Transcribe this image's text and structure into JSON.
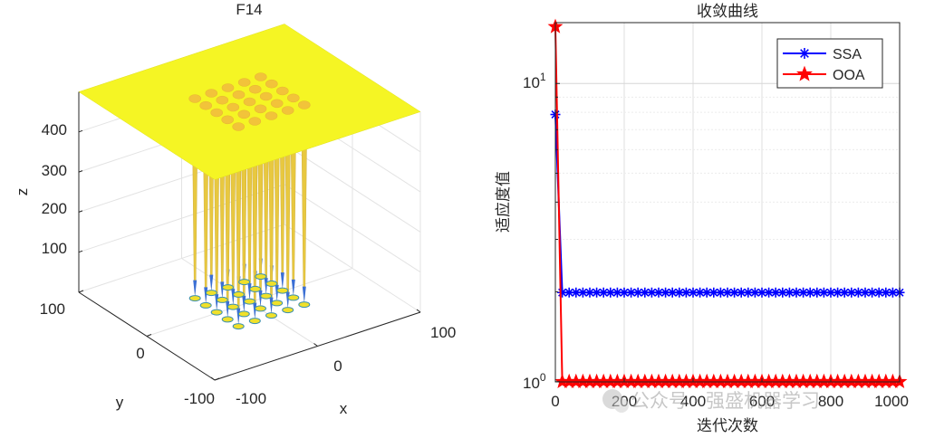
{
  "chart_data": [
    {
      "type": "surface",
      "title": "F14",
      "xlabel": "x",
      "ylabel": "y",
      "zlabel": "z",
      "xlim": [
        -100,
        100
      ],
      "ylim": [
        -100,
        100
      ],
      "zlim": [
        0,
        500
      ],
      "x_ticks": [
        "-100",
        "0",
        "100"
      ],
      "y_ticks": [
        "-100",
        "0",
        "100"
      ],
      "z_ticks": [
        "100",
        "200",
        "300",
        "400"
      ],
      "surface_value": 500,
      "well_grid_coords": [
        -32,
        -16,
        0,
        16,
        32
      ],
      "well_count": 25,
      "colors": {
        "plateau": "#f5f524",
        "walls": "#e8c840",
        "well_bottom": "#3b6fd4"
      }
    },
    {
      "type": "line",
      "title": "收敛曲线",
      "xlabel": "迭代次数",
      "ylabel": "适应度值",
      "yscale": "log",
      "xlim": [
        0,
        1000
      ],
      "ylim": [
        0.998,
        16
      ],
      "x_ticks": [
        "0",
        "200",
        "400",
        "600",
        "800",
        "1000"
      ],
      "y_tick_labels": [
        {
          "base": "10",
          "exp": "0"
        },
        {
          "base": "10",
          "exp": "1"
        }
      ],
      "legend_position": "top-right",
      "series": [
        {
          "name": "SSA",
          "color": "#0000ff",
          "marker": "asterisk",
          "x": [
            0,
            20,
            40,
            60,
            80,
            100,
            120,
            140,
            160,
            180,
            200,
            220,
            240,
            260,
            280,
            300,
            320,
            340,
            360,
            380,
            400,
            420,
            440,
            460,
            480,
            500,
            520,
            540,
            560,
            580,
            600,
            620,
            640,
            660,
            680,
            700,
            720,
            740,
            760,
            780,
            800,
            820,
            840,
            860,
            880,
            900,
            920,
            940,
            960,
            980,
            1000
          ],
          "y": [
            7.87,
            1.99,
            1.99,
            1.99,
            1.99,
            1.99,
            1.99,
            1.99,
            1.99,
            1.99,
            1.99,
            1.99,
            1.99,
            1.99,
            1.99,
            1.99,
            1.99,
            1.99,
            1.99,
            1.99,
            1.99,
            1.99,
            1.99,
            1.99,
            1.99,
            1.99,
            1.99,
            1.99,
            1.99,
            1.99,
            1.99,
            1.99,
            1.99,
            1.99,
            1.99,
            1.99,
            1.99,
            1.99,
            1.99,
            1.99,
            1.99,
            1.99,
            1.99,
            1.99,
            1.99,
            1.99,
            1.99,
            1.99,
            1.99,
            1.99,
            1.99
          ]
        },
        {
          "name": "OOA",
          "color": "#ff0000",
          "marker": "pentagram",
          "x": [
            0,
            20,
            40,
            60,
            80,
            100,
            120,
            140,
            160,
            180,
            200,
            220,
            240,
            260,
            280,
            300,
            320,
            340,
            360,
            380,
            400,
            420,
            440,
            460,
            480,
            500,
            520,
            540,
            560,
            580,
            600,
            620,
            640,
            660,
            680,
            700,
            720,
            740,
            760,
            780,
            800,
            820,
            840,
            860,
            880,
            900,
            920,
            940,
            960,
            980,
            1000
          ],
          "y": [
            15.5,
            1.0,
            1.0,
            1.0,
            1.0,
            1.0,
            1.0,
            1.0,
            1.0,
            1.0,
            1.0,
            1.0,
            1.0,
            1.0,
            1.0,
            1.0,
            1.0,
            1.0,
            1.0,
            1.0,
            1.0,
            1.0,
            1.0,
            1.0,
            1.0,
            1.0,
            1.0,
            1.0,
            1.0,
            1.0,
            1.0,
            1.0,
            1.0,
            1.0,
            1.0,
            1.0,
            1.0,
            1.0,
            1.0,
            1.0,
            1.0,
            1.0,
            1.0,
            1.0,
            1.0,
            1.0,
            1.0,
            1.0,
            1.0,
            1.0,
            1.0
          ]
        }
      ]
    }
  ],
  "watermark": "公众号 · 强盛机器学习"
}
